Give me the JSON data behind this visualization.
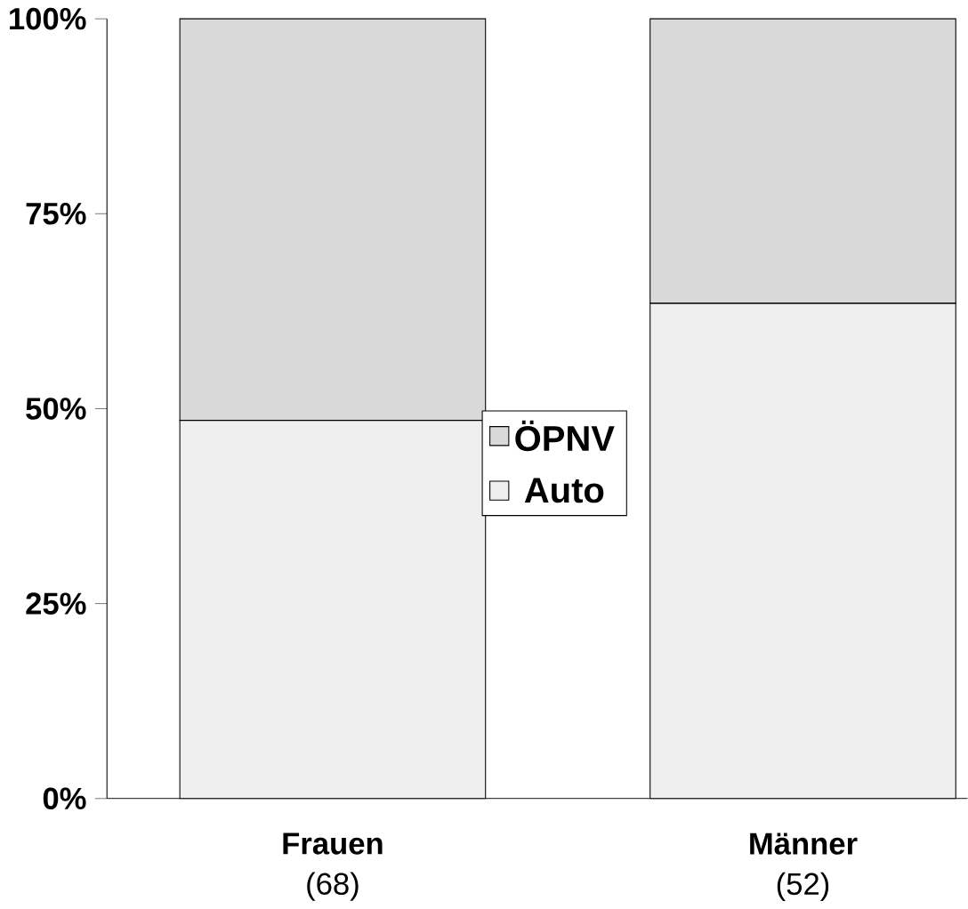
{
  "chart_data": {
    "type": "bar",
    "stacked": true,
    "categories": [
      "**Frauen** (68)",
      "**Männer** (52)"
    ],
    "series": [
      {
        "name": "Auto",
        "color": "#efefef",
        "values": [
          48.5,
          63.5
        ]
      },
      {
        "name": "ÖPNV",
        "color": "#d9d9d9",
        "values": [
          51.5,
          36.5
        ]
      }
    ],
    "ylim": [
      0,
      100
    ],
    "yticks": [
      {
        "value": 0,
        "label": "0%"
      },
      {
        "value": 25,
        "label": "25%"
      },
      {
        "value": 50,
        "label": "50%"
      },
      {
        "value": 75,
        "label": "75%"
      },
      {
        "value": 100,
        "label": "100%"
      }
    ],
    "legend": "center",
    "grid": false
  }
}
